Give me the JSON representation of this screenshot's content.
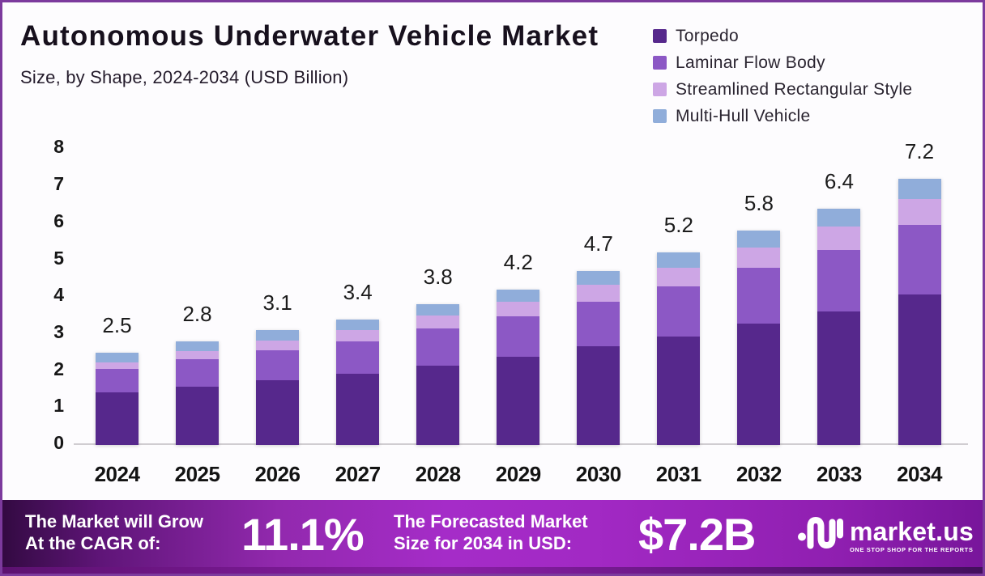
{
  "header": {
    "title": "Autonomous Underwater Vehicle Market",
    "subtitle": "Size, by Shape, 2024-2034 (USD Billion)"
  },
  "chart_data": {
    "type": "bar",
    "stacked": true,
    "categories": [
      "2024",
      "2025",
      "2026",
      "2027",
      "2028",
      "2029",
      "2030",
      "2031",
      "2032",
      "2033",
      "2034"
    ],
    "totals": [
      2.5,
      2.8,
      3.1,
      3.4,
      3.8,
      4.2,
      4.7,
      5.2,
      5.8,
      6.4,
      7.2
    ],
    "series": [
      {
        "name": "Torpedo",
        "color": "#56288c",
        "values": [
          1.42,
          1.58,
          1.75,
          1.92,
          2.15,
          2.38,
          2.66,
          2.94,
          3.28,
          3.62,
          4.07
        ]
      },
      {
        "name": "Laminar Flow Body",
        "color": "#8c58c5",
        "values": [
          0.64,
          0.74,
          0.82,
          0.89,
          1.0,
          1.09,
          1.22,
          1.35,
          1.51,
          1.66,
          1.88
        ]
      },
      {
        "name": "Streamlined Rectangular Style",
        "color": "#cda6e5",
        "values": [
          0.18,
          0.22,
          0.26,
          0.3,
          0.34,
          0.4,
          0.45,
          0.5,
          0.56,
          0.62,
          0.7
        ]
      },
      {
        "name": "Multi-Hull Vehicle",
        "color": "#90adda",
        "values": [
          0.26,
          0.26,
          0.27,
          0.29,
          0.31,
          0.33,
          0.37,
          0.41,
          0.45,
          0.5,
          0.55
        ]
      }
    ],
    "title": "Autonomous Underwater Vehicle Market",
    "subtitle": "Size, by Shape, 2024-2034 (USD Billion)",
    "xlabel": "",
    "ylabel": "",
    "ylim": [
      0,
      8
    ],
    "yticks": [
      0,
      1,
      2,
      3,
      4,
      5,
      6,
      7,
      8
    ],
    "grid": false,
    "legend_position": "top-right",
    "value_labels": [
      "2.5",
      "2.8",
      "3.1",
      "3.4",
      "3.8",
      "4.2",
      "4.7",
      "5.2",
      "5.8",
      "6.4",
      "7.2"
    ]
  },
  "footer": {
    "cagr_label_line1": "The Market will Grow",
    "cagr_label_line2": "At the CAGR of:",
    "cagr_value": "11.1%",
    "forecast_label_line1": "The Forecasted Market",
    "forecast_label_line2": "Size for 2034 in USD:",
    "forecast_value": "$7.2B",
    "brand": "market.us",
    "tagline": "ONE STOP SHOP FOR THE REPORTS"
  }
}
